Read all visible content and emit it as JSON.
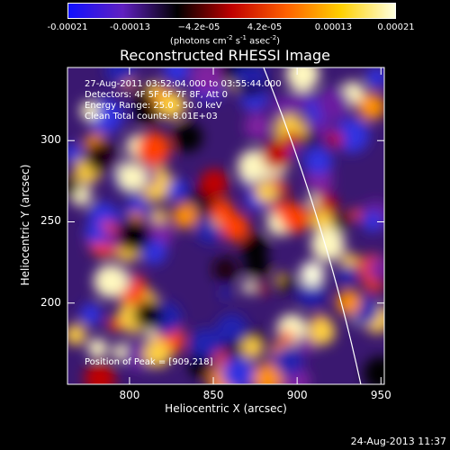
{
  "colorbar": {
    "tick_labels": [
      "-0.00021",
      "-0.00013",
      "−4.2e-05",
      "4.2e-05",
      "0.00013",
      "0.00021"
    ],
    "tick_values": [
      -0.00021,
      -0.00013,
      -4.2e-05,
      4.2e-05,
      0.00013,
      0.00021
    ],
    "range": [
      -0.00021,
      0.00021
    ],
    "units_text": "(photons cm",
    "units_sup1": "-2",
    "units_mid": " s",
    "units_sup2": "-1",
    "units_mid2": " asec",
    "units_sup3": "-2",
    "units_end": ")",
    "colors": [
      "#1010ff",
      "#6020c0",
      "#000000",
      "#c00000",
      "#ff6000",
      "#ffd000",
      "#ffffe0"
    ]
  },
  "chart_data": {
    "type": "heatmap",
    "title": "Reconstructed RHESSI Image",
    "xlabel": "Heliocentric X (arcsec)",
    "ylabel": "Heliocentric Y (arcsec)",
    "xlim": [
      763,
      952
    ],
    "ylim": [
      150,
      345
    ],
    "x_ticks": [
      800,
      850,
      900,
      950
    ],
    "y_ticks": [
      200,
      250,
      300
    ],
    "x_tick_labels": [
      "800",
      "850",
      "900",
      "950"
    ],
    "y_tick_labels": [
      "200",
      "250",
      "300"
    ],
    "peak": [
      909,
      218
    ],
    "limb_color": "#ffffff"
  },
  "annotations": {
    "time_range": "27-Aug-2011 03:52:04.000 to 03:55:44.000",
    "detectors": "Detectors: 4F 5F 6F 7F 8F, Att 0",
    "energy": "Energy Range: 25.0 - 50.0 keV",
    "clean": "Clean    Total counts: 8.01E+03",
    "peak_text": "Position of Peak = [909,218]"
  },
  "footer": {
    "timestamp": "24-Aug-2013 11:37"
  }
}
